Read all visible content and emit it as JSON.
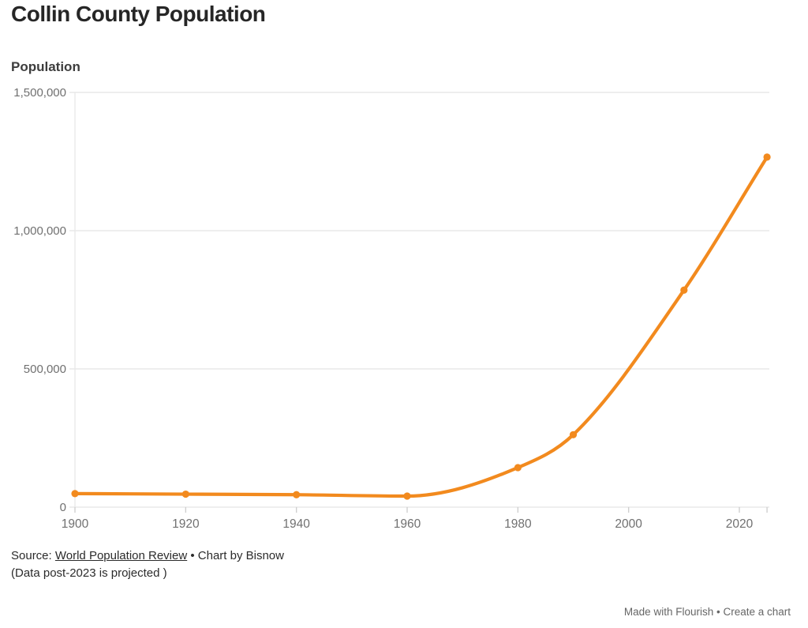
{
  "header": {
    "title": "Collin County Population"
  },
  "chart": {
    "y_axis_title": "Population",
    "line_color": "#F28A1E",
    "grid_color": "#e9e9e9",
    "axis_tick_color": "#cfcfcf",
    "tick_label_color": "#707070"
  },
  "chart_data": {
    "type": "line",
    "title": "Collin County Population",
    "xlabel": "",
    "ylabel": "Population",
    "x": [
      1900,
      1920,
      1940,
      1960,
      1980,
      1990,
      2010,
      2025
    ],
    "series": [
      {
        "name": "Population",
        "values": [
          49000,
          47000,
          45000,
          40000,
          143000,
          262000,
          785000,
          1266000
        ]
      }
    ],
    "x_ticks": [
      1900,
      1920,
      1940,
      1960,
      1980,
      2000,
      2020
    ],
    "y_ticks": [
      {
        "value": 0,
        "label": "0"
      },
      {
        "value": 500000,
        "label": "500,000"
      },
      {
        "value": 1000000,
        "label": "1,000,000"
      },
      {
        "value": 1500000,
        "label": "1,500,000"
      }
    ],
    "xlim": [
      1900,
      2025
    ],
    "ylim": [
      0,
      1500000
    ],
    "grid": "horizontal",
    "legend": "none",
    "point_markers": true
  },
  "source": {
    "prefix": "Source: ",
    "link": "World Population Review",
    "suffix": " • Chart by Bisnow",
    "note": "(Data post-2023 is projected )"
  },
  "footer": {
    "made_with": "Made with Flourish",
    "separator": " • ",
    "create": "Create a chart"
  }
}
